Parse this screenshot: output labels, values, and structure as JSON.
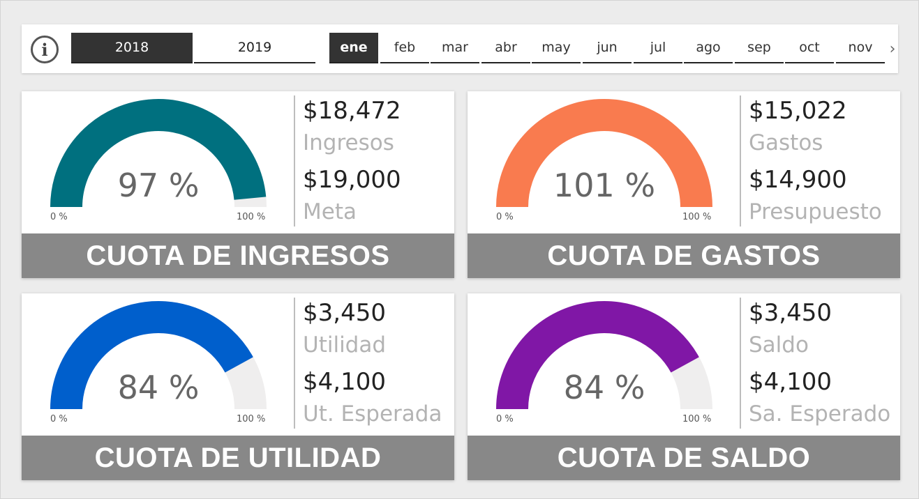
{
  "filters": {
    "info_icon": "info-icon",
    "years": [
      {
        "label": "2018",
        "active": true
      },
      {
        "label": "2019",
        "active": false
      }
    ],
    "months": [
      {
        "label": "ene",
        "active": true
      },
      {
        "label": "feb",
        "active": false
      },
      {
        "label": "mar",
        "active": false
      },
      {
        "label": "abr",
        "active": false
      },
      {
        "label": "may",
        "active": false
      },
      {
        "label": "jun",
        "active": false
      },
      {
        "label": "jul",
        "active": false
      },
      {
        "label": "ago",
        "active": false
      },
      {
        "label": "sep",
        "active": false
      },
      {
        "label": "oct",
        "active": false
      },
      {
        "label": "nov",
        "active": false
      }
    ],
    "scroll_glyph": "›"
  },
  "cards": [
    {
      "title": "CUOTA DE INGRESOS",
      "percent_label": "97 %",
      "percent": 0.97,
      "color": "#00707f",
      "min_label": "0 %",
      "max_label": "100 %",
      "value1": "$18,472",
      "label1": "Ingresos",
      "value2": "$19,000",
      "label2": "Meta"
    },
    {
      "title": "CUOTA DE GASTOS",
      "percent_label": "101 %",
      "percent": 1.01,
      "color": "#f97b4f",
      "min_label": "0 %",
      "max_label": "100 %",
      "value1": "$15,022",
      "label1": "Gastos",
      "value2": "$14,900",
      "label2": "Presupuesto"
    },
    {
      "title": "CUOTA DE UTILIDAD",
      "percent_label": "84 %",
      "percent": 0.84,
      "color": "#005fcc",
      "min_label": "0 %",
      "max_label": "100 %",
      "value1": "$3,450",
      "label1": "Utilidad",
      "value2": "$4,100",
      "label2": "Ut. Esperada"
    },
    {
      "title": "CUOTA DE SALDO",
      "percent_label": "84 %",
      "percent": 0.84,
      "color": "#8017a6",
      "min_label": "0 %",
      "max_label": "100 %",
      "value1": "$3,450",
      "label1": "Saldo",
      "value2": "$4,100",
      "label2": "Sa. Esperado"
    }
  ],
  "colors": {
    "gauge_track": "#efeeee",
    "banner_bg": "#888888",
    "active_slicer": "#333333"
  }
}
